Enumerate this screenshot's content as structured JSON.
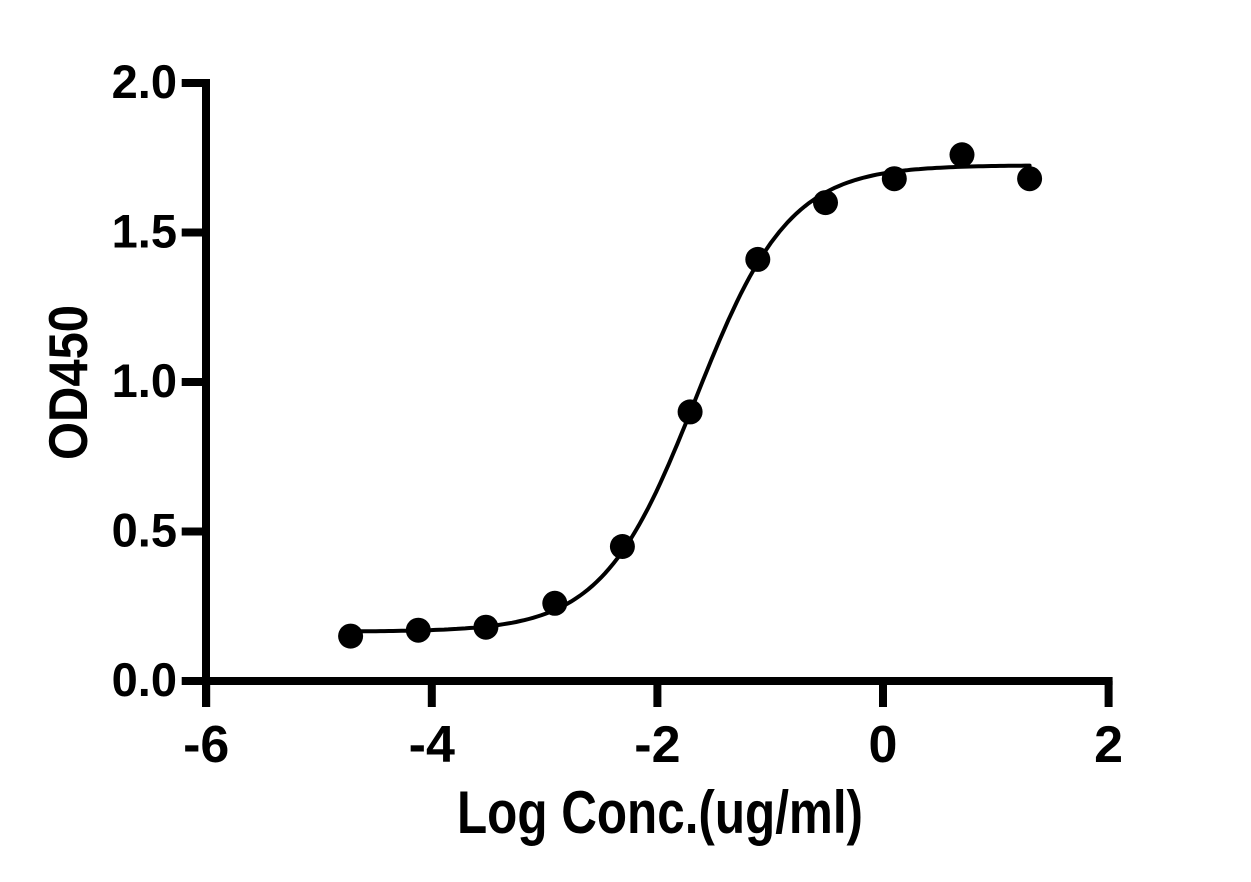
{
  "figure": {
    "background_color": "#ffffff",
    "ink_color": "#000000"
  },
  "chart_data": {
    "type": "scatter",
    "subtype": "sigmoidal-dose-response-fit",
    "title": "",
    "xlabel": "Log Conc.(ug/ml)",
    "ylabel": "OD450",
    "xlim": [
      -6,
      2
    ],
    "ylim": [
      0.0,
      2.0
    ],
    "grid": false,
    "legend": "none",
    "x_ticks": [
      {
        "value": -6,
        "label": "-6"
      },
      {
        "value": -4,
        "label": "-4"
      },
      {
        "value": -2,
        "label": "-2"
      },
      {
        "value": 0,
        "label": "0"
      },
      {
        "value": 2,
        "label": "2"
      }
    ],
    "y_ticks": [
      {
        "value": 0.0,
        "label": "0.0"
      },
      {
        "value": 0.5,
        "label": "0.5"
      },
      {
        "value": 1.0,
        "label": "1.0"
      },
      {
        "value": 1.5,
        "label": "1.5"
      },
      {
        "value": 2.0,
        "label": "2.0"
      }
    ],
    "series": [
      {
        "name": "OD450",
        "marker": "filled-circle",
        "marker_color": "#000000",
        "points": [
          {
            "x": -4.72,
            "y": 0.15
          },
          {
            "x": -4.12,
            "y": 0.17
          },
          {
            "x": -3.52,
            "y": 0.18
          },
          {
            "x": -2.91,
            "y": 0.26
          },
          {
            "x": -2.31,
            "y": 0.45
          },
          {
            "x": -1.71,
            "y": 0.9
          },
          {
            "x": -1.11,
            "y": 1.41
          },
          {
            "x": -0.51,
            "y": 1.6
          },
          {
            "x": 0.1,
            "y": 1.68
          },
          {
            "x": 0.7,
            "y": 1.76
          },
          {
            "x": 1.3,
            "y": 1.68
          }
        ]
      }
    ],
    "fit_curve": {
      "model": "4PL-sigmoid",
      "bottom": 0.165,
      "top": 1.725,
      "log_ec50": -1.66,
      "hill_slope": 1.05,
      "x_start": -4.72,
      "x_end": 1.3,
      "color": "#000000"
    }
  }
}
